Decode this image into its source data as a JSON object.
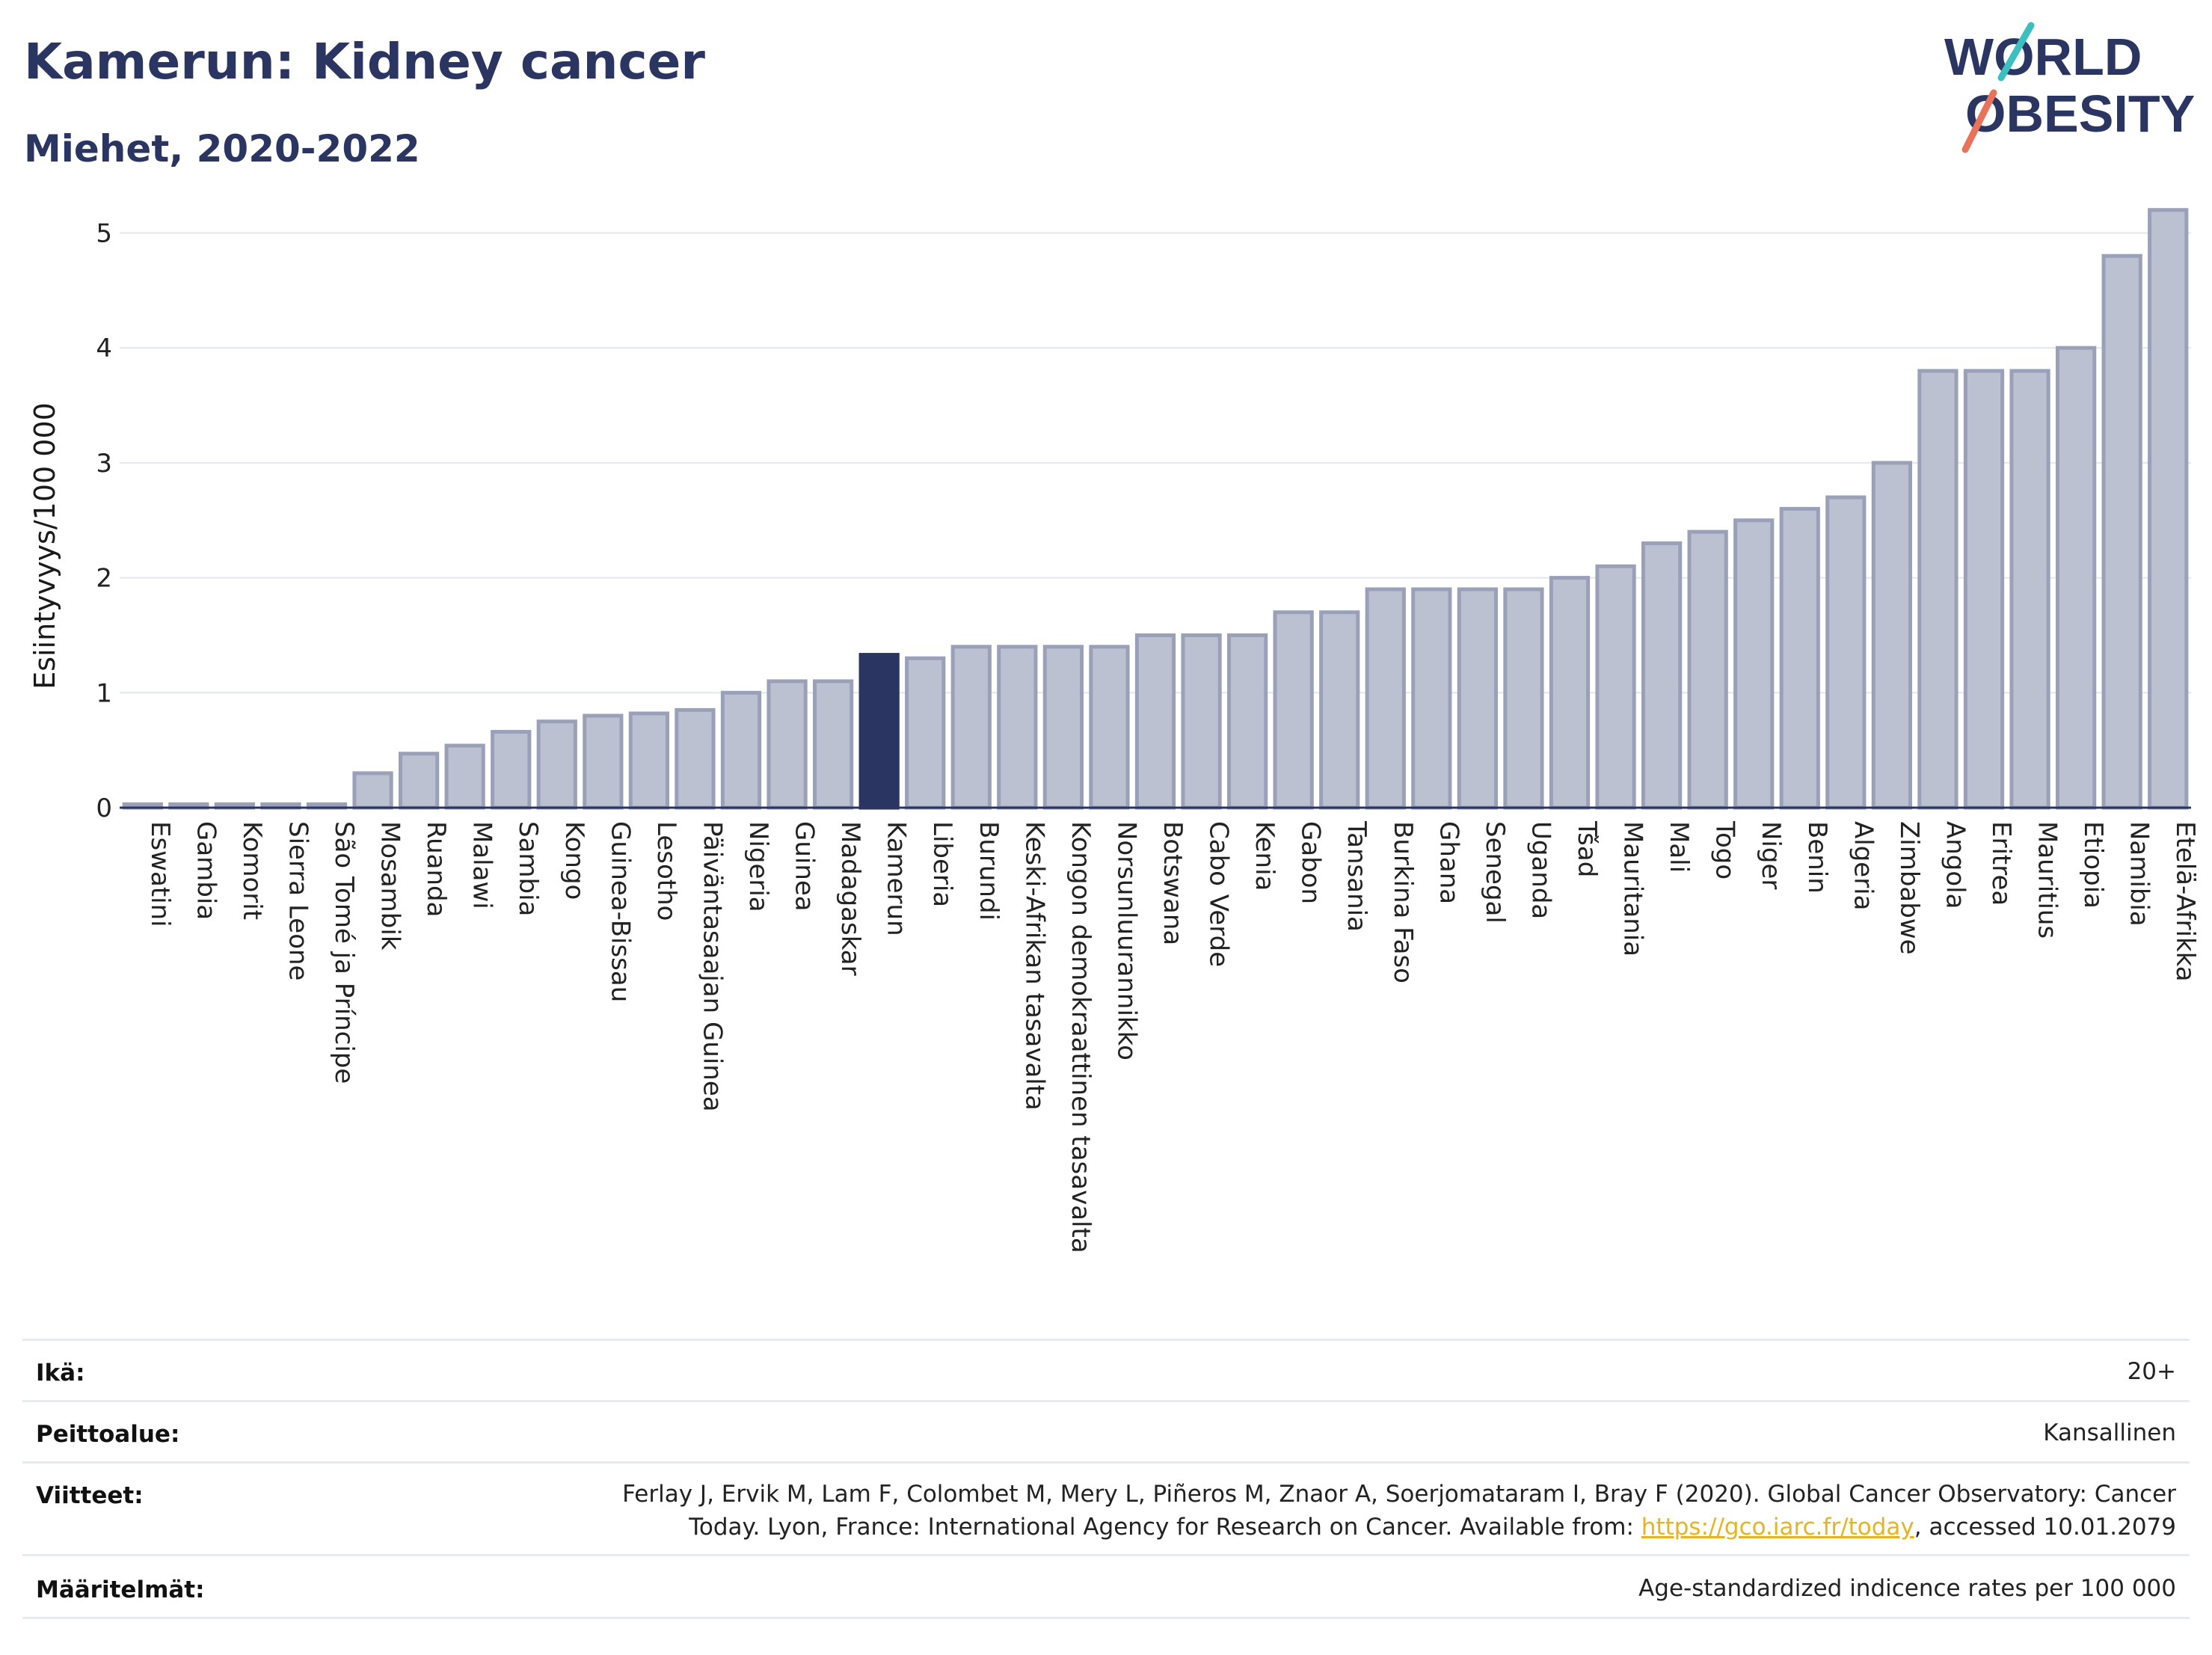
{
  "header": {
    "title": "Kamerun: Kidney cancer",
    "subtitle": "Miehet, 2020-2022",
    "logo_text_line1": "WORLD",
    "logo_text_line2": "OBESITY"
  },
  "chart_data": {
    "type": "bar",
    "ylabel": "Esiintyvyys/100 000",
    "ylim": [
      0,
      5.4
    ],
    "yticks": [
      0,
      1,
      2,
      3,
      4,
      5
    ],
    "grid": true,
    "highlight": "Kamerun",
    "colors": {
      "bar": "#bcc1d1",
      "bar_border": "#9aa0b8",
      "highlight": "#2b3561",
      "grid": "#e3e6ec"
    },
    "categories": [
      "Eswatini",
      "Gambia",
      "Komorit",
      "Sierra Leone",
      "São Tomé ja Príncipe",
      "Mosambik",
      "Ruanda",
      "Malawi",
      "Sambia",
      "Kongo",
      "Guinea-Bissau",
      "Lesotho",
      "Päiväntasaajan Guinea",
      "Nigeria",
      "Guinea",
      "Madagaskar",
      "Kamerun",
      "Liberia",
      "Burundi",
      "Keski-Afrikan tasavalta",
      "Kongon demokraattinen tasavalta",
      "Norsunluurannikko",
      "Botswana",
      "Cabo Verde",
      "Kenia",
      "Gabon",
      "Tansania",
      "Burkina Faso",
      "Ghana",
      "Senegal",
      "Uganda",
      "Tšad",
      "Mauritania",
      "Mali",
      "Togo",
      "Niger",
      "Benin",
      "Algeria",
      "Zimbabwe",
      "Angola",
      "Eritrea",
      "Mauritius",
      "Etiopia",
      "Namibia",
      "Etelä-Afrikka"
    ],
    "values": [
      0.03,
      0.03,
      0.03,
      0.03,
      0.03,
      0.3,
      0.47,
      0.54,
      0.66,
      0.75,
      0.8,
      0.82,
      0.85,
      1.0,
      1.1,
      1.1,
      1.33,
      1.3,
      1.4,
      1.4,
      1.4,
      1.4,
      1.5,
      1.5,
      1.5,
      1.7,
      1.7,
      1.9,
      1.9,
      1.9,
      1.9,
      2.0,
      2.1,
      2.3,
      2.4,
      2.5,
      2.6,
      2.7,
      3.0,
      3.8,
      3.8,
      3.8,
      4.0,
      4.8,
      5.2
    ]
  },
  "footer": {
    "rows": [
      {
        "key": "Ikä:",
        "value": "20+"
      },
      {
        "key": "Peittoalue:",
        "value": "Kansallinen"
      },
      {
        "key": "Viitteet:",
        "value_line1": "Ferlay J, Ervik M, Lam F, Colombet M, Mery L, Piñeros M, Znaor A, Soerjomataram I, Bray F (2020). Global Cancer Observatory: Cancer",
        "value_line2_pre": "Today. Lyon, France: International Agency for Research on Cancer. Available from: ",
        "value_link": "https://gco.iarc.fr/today",
        "value_line2_post": ", accessed 10.01.2079"
      },
      {
        "key": "Määritelmät:",
        "value": "Age-standardized indicence rates per 100 000"
      }
    ]
  }
}
